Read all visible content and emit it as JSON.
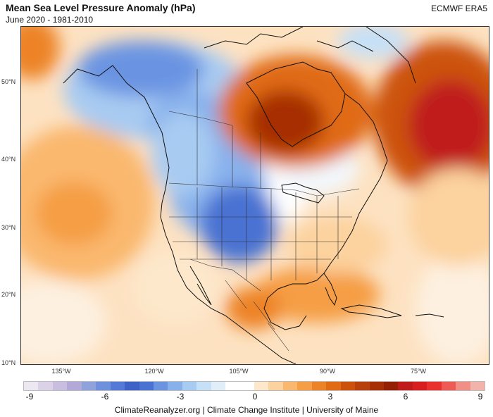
{
  "header": {
    "title": "Mean Sea Level Pressure Anomaly (hPa)",
    "subtitle": "June 2020 - 1981-2010",
    "source": "ECMWF ERA5"
  },
  "map": {
    "lat_labels": [
      "50°N",
      "40°N",
      "30°N",
      "20°N",
      "10°N"
    ],
    "lon_labels": [
      "135°W",
      "120°W",
      "105°W",
      "90°W",
      "75°W"
    ],
    "projection": "conic",
    "region": "North America"
  },
  "legend": {
    "tick_labels": [
      "-9",
      "-6",
      "-3",
      "0",
      "3",
      "6",
      "9"
    ],
    "range": [
      -9,
      9
    ],
    "colors": [
      "#ede7f2",
      "#dcd2e8",
      "#c9bde0",
      "#b3a9d8",
      "#8fa2dc",
      "#6f90dc",
      "#5479d6",
      "#3f62c8",
      "#4a72d2",
      "#6a94e2",
      "#88b1ec",
      "#a8cbf2",
      "#c6e0f7",
      "#e0eef9",
      "#ffffff",
      "#ffffff",
      "#fde8cc",
      "#fcd29e",
      "#fab86e",
      "#f59e45",
      "#ed8327",
      "#e06b12",
      "#cc520c",
      "#b8400a",
      "#a62f06",
      "#951f04",
      "#c01a1a",
      "#d81e1e",
      "#e9322e",
      "#ef5a55",
      "#f18f86",
      "#f2b3aa"
    ]
  },
  "footer": {
    "credit": "ClimateReanalyzer.org | Climate Change Institute | University of Maine"
  }
}
